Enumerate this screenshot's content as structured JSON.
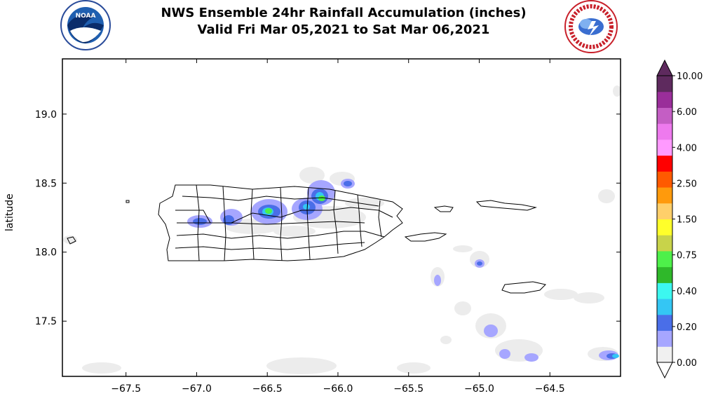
{
  "title": {
    "line1": "NWS Ensemble 24hr Rainfall Accumulation (inches)",
    "line2": "Valid Fri Mar 05,2021 to Sat Mar 06,2021"
  },
  "logos": {
    "left": {
      "name": "NOAA",
      "text": "NOAA",
      "ring_text": "NATIONAL OCEANIC AND ATMOSPHERIC ADMINISTRATION - U.S. DEPARTMENT OF COMMERCE"
    },
    "right": {
      "name": "National Weather Service",
      "ring_text": "NATIONAL WEATHER SERVICE"
    }
  },
  "map": {
    "ylabel": "latitude",
    "x_ticks": [
      "−67.5",
      "−67.0",
      "−66.5",
      "−66.0",
      "−65.5",
      "−65.0",
      "−64.5"
    ],
    "y_ticks": [
      "19.0",
      "18.5",
      "18.0",
      "17.5"
    ],
    "x_tick_values": [
      -67.5,
      -67.0,
      -66.5,
      -66.0,
      -65.5,
      -65.0,
      -64.5
    ],
    "y_tick_values": [
      19.0,
      18.5,
      18.0,
      17.5
    ],
    "lon_range": [
      -67.95,
      -64.0
    ],
    "lat_range": [
      17.1,
      19.4
    ],
    "region": "Puerto Rico and Virgin Islands"
  },
  "colorbar": {
    "labels": [
      "10.00",
      "6.00",
      "4.00",
      "2.50",
      "1.50",
      "0.75",
      "0.40",
      "0.20",
      "0.00"
    ],
    "bins": [
      {
        "color": "#f0f0f0"
      },
      {
        "color": "#a6a6ff"
      },
      {
        "color": "#4a6ee8"
      },
      {
        "color": "#34c6f4"
      },
      {
        "color": "#3cf7f0"
      },
      {
        "color": "#2fb82a"
      },
      {
        "color": "#4ef04a"
      },
      {
        "color": "#c8d34a"
      },
      {
        "color": "#ffff2a"
      },
      {
        "color": "#ffcf6a"
      },
      {
        "color": "#ff9a0c"
      },
      {
        "color": "#ff5a00"
      },
      {
        "color": "#ff0000"
      },
      {
        "color": "#ff9aff"
      },
      {
        "color": "#ee7aee"
      },
      {
        "color": "#c45ec4"
      },
      {
        "color": "#9a2e9a"
      },
      {
        "color": "#5e2a5e"
      }
    ]
  }
}
